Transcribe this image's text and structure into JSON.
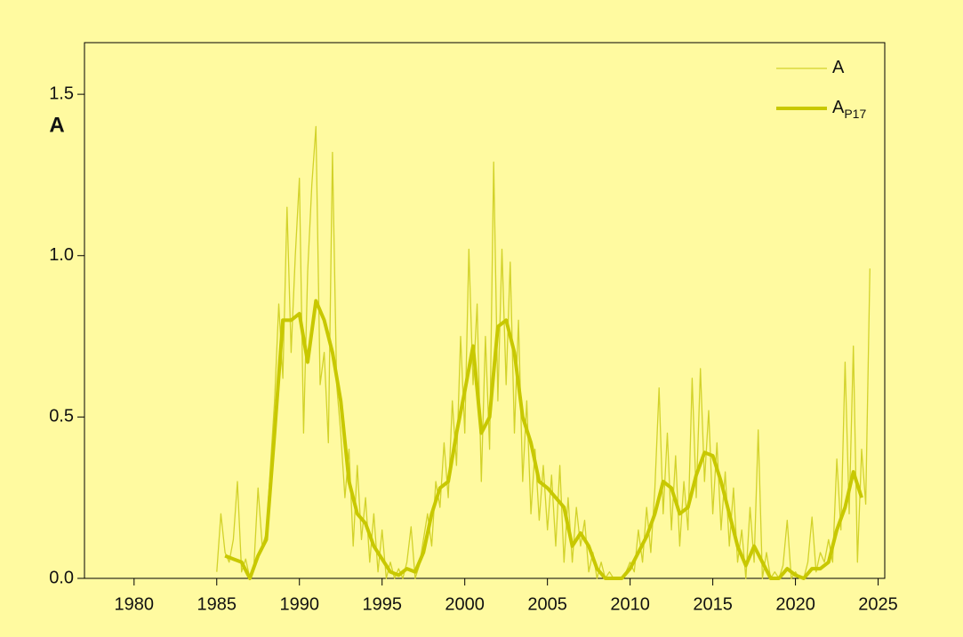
{
  "chart_data": {
    "type": "line",
    "ylabel": "A",
    "xlim": [
      1977,
      2025.4
    ],
    "ylim": [
      0,
      1.66
    ],
    "xticks": [
      1980,
      1985,
      1990,
      1995,
      2000,
      2005,
      2010,
      2015,
      2020,
      2025
    ],
    "yticks": [
      {
        "value": 0,
        "label": "0.0"
      },
      {
        "value": 0.5,
        "label": "0.5"
      },
      {
        "value": 1,
        "label": "1.0"
      },
      {
        "value": 1.5,
        "label": "1.5"
      }
    ],
    "legend": "upper right",
    "series": [
      {
        "name": "A",
        "color": "#d2d22a",
        "width": 1.3,
        "x": [
          1985,
          1985.25,
          1985.5,
          1985.75,
          1986,
          1986.25,
          1986.5,
          1986.75,
          1987,
          1987.25,
          1987.5,
          1987.75,
          1988,
          1988.25,
          1988.5,
          1988.75,
          1989,
          1989.25,
          1989.5,
          1989.75,
          1990,
          1990.25,
          1990.5,
          1990.75,
          1991,
          1991.25,
          1991.5,
          1991.75,
          1992,
          1992.25,
          1992.5,
          1992.75,
          1993,
          1993.25,
          1993.5,
          1993.75,
          1994,
          1994.25,
          1994.5,
          1994.75,
          1995,
          1995.25,
          1995.5,
          1995.75,
          1996,
          1996.25,
          1996.5,
          1996.75,
          1997,
          1997.25,
          1997.5,
          1997.75,
          1998,
          1998.25,
          1998.5,
          1998.75,
          1999,
          1999.25,
          1999.5,
          1999.75,
          2000,
          2000.25,
          2000.5,
          2000.75,
          2001,
          2001.25,
          2001.5,
          2001.75,
          2002,
          2002.25,
          2002.5,
          2002.75,
          2003,
          2003.25,
          2003.5,
          2003.75,
          2004,
          2004.25,
          2004.5,
          2004.75,
          2005,
          2005.25,
          2005.5,
          2005.75,
          2006,
          2006.25,
          2006.5,
          2006.75,
          2007,
          2007.25,
          2007.5,
          2007.75,
          2008,
          2008.25,
          2008.5,
          2008.75,
          2009,
          2009.25,
          2009.5,
          2009.75,
          2010,
          2010.25,
          2010.5,
          2010.75,
          2011,
          2011.25,
          2011.5,
          2011.75,
          2012,
          2012.25,
          2012.5,
          2012.75,
          2013,
          2013.25,
          2013.5,
          2013.75,
          2014,
          2014.25,
          2014.5,
          2014.75,
          2015,
          2015.25,
          2015.5,
          2015.75,
          2016,
          2016.25,
          2016.5,
          2016.75,
          2017,
          2017.25,
          2017.5,
          2017.75,
          2018,
          2018.25,
          2018.5,
          2018.75,
          2019,
          2019.25,
          2019.5,
          2019.75,
          2020,
          2020.25,
          2020.5,
          2020.75,
          2021,
          2021.25,
          2021.5,
          2021.75,
          2022,
          2022.25,
          2022.5,
          2022.75,
          2023,
          2023.25,
          2023.5,
          2023.75,
          2024,
          2024.25,
          2024.5
        ],
        "values": [
          0.02,
          0.2,
          0.08,
          0.05,
          0.12,
          0.3,
          0.02,
          0.06,
          0,
          0.04,
          0.28,
          0.1,
          0.14,
          0.35,
          0.55,
          0.85,
          0.62,
          1.15,
          0.7,
          1,
          1.24,
          0.45,
          0.95,
          1.22,
          1.4,
          0.6,
          0.7,
          0.42,
          1.32,
          0.6,
          0.45,
          0.25,
          0.4,
          0.1,
          0.35,
          0.12,
          0.25,
          0.05,
          0.2,
          0.02,
          0.15,
          0,
          0.05,
          0,
          0.03,
          0,
          0.05,
          0.16,
          0,
          0.04,
          0.12,
          0.2,
          0.1,
          0.3,
          0.22,
          0.42,
          0.25,
          0.55,
          0.35,
          0.75,
          0.45,
          1.02,
          0.6,
          0.85,
          0.3,
          0.75,
          0.4,
          1.29,
          0.55,
          1.02,
          0.6,
          0.98,
          0.45,
          0.8,
          0.3,
          0.55,
          0.2,
          0.4,
          0.18,
          0.35,
          0.15,
          0.32,
          0.1,
          0.35,
          0.05,
          0.25,
          0.05,
          0.22,
          0.1,
          0.18,
          0.02,
          0.08,
          0,
          0.05,
          0,
          0.02,
          0,
          0,
          0,
          0.02,
          0.05,
          0.02,
          0.15,
          0.05,
          0.22,
          0.08,
          0.28,
          0.59,
          0.2,
          0.45,
          0.15,
          0.38,
          0.1,
          0.3,
          0.15,
          0.62,
          0.25,
          0.65,
          0.3,
          0.52,
          0.2,
          0.42,
          0.15,
          0.33,
          0.1,
          0.28,
          0.05,
          0.15,
          0,
          0.22,
          0.05,
          0.46,
          0,
          0.08,
          0,
          0.02,
          0,
          0.04,
          0.18,
          0,
          0.02,
          0,
          0,
          0.05,
          0.19,
          0.02,
          0.08,
          0.05,
          0.12,
          0.05,
          0.37,
          0.15,
          0.67,
          0.2,
          0.72,
          0.05,
          0.4,
          0.23,
          0.96
        ]
      },
      {
        "name": "A",
        "name_subscript": "P17",
        "color": "#c8c800",
        "width": 4,
        "x": [
          1985.5,
          1986,
          1986.5,
          1987,
          1987.5,
          1988,
          1988.5,
          1989,
          1989.5,
          1990,
          1990.5,
          1991,
          1991.5,
          1992,
          1992.5,
          1993,
          1993.5,
          1994,
          1994.5,
          1995,
          1995.5,
          1996,
          1996.5,
          1997,
          1997.5,
          1998,
          1998.5,
          1999,
          1999.5,
          2000,
          2000.5,
          2001,
          2001.5,
          2002,
          2002.5,
          2003,
          2003.5,
          2004,
          2004.5,
          2005,
          2005.5,
          2006,
          2006.5,
          2007,
          2007.5,
          2008,
          2008.5,
          2009,
          2009.5,
          2010,
          2010.5,
          2011,
          2011.5,
          2012,
          2012.5,
          2013,
          2013.5,
          2014,
          2014.5,
          2015,
          2015.5,
          2016,
          2016.5,
          2017,
          2017.5,
          2018,
          2018.5,
          2019,
          2019.5,
          2020,
          2020.5,
          2021,
          2021.5,
          2022,
          2022.5,
          2023,
          2023.5,
          2024
        ],
        "values": [
          0.07,
          0.06,
          0.05,
          0,
          0.07,
          0.12,
          0.45,
          0.8,
          0.8,
          0.82,
          0.67,
          0.86,
          0.8,
          0.7,
          0.55,
          0.3,
          0.2,
          0.17,
          0.1,
          0.06,
          0.02,
          0.01,
          0.03,
          0.02,
          0.08,
          0.2,
          0.28,
          0.3,
          0.45,
          0.58,
          0.72,
          0.45,
          0.5,
          0.78,
          0.8,
          0.7,
          0.5,
          0.42,
          0.3,
          0.28,
          0.25,
          0.22,
          0.1,
          0.14,
          0.1,
          0.03,
          0,
          0,
          0,
          0.03,
          0.08,
          0.13,
          0.2,
          0.3,
          0.28,
          0.2,
          0.22,
          0.32,
          0.39,
          0.38,
          0.3,
          0.2,
          0.1,
          0.04,
          0.1,
          0.05,
          0,
          0,
          0.03,
          0.01,
          0,
          0.03,
          0.03,
          0.05,
          0.15,
          0.22,
          0.33,
          0.25
        ]
      }
    ]
  }
}
